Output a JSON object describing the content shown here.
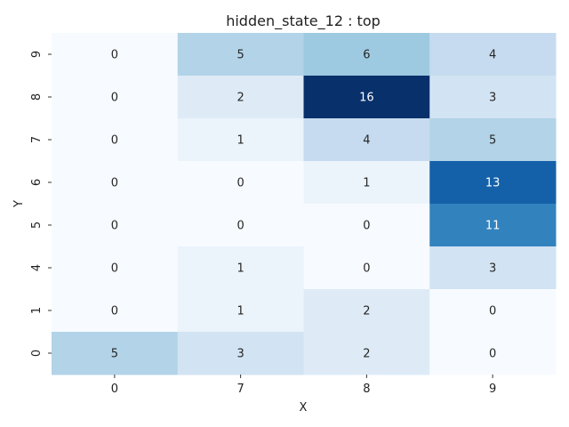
{
  "chart_data": {
    "type": "heatmap",
    "title": "hidden_state_12 : top",
    "xlabel": "X",
    "ylabel": "Y",
    "x_categories": [
      "0",
      "7",
      "8",
      "9"
    ],
    "y_categories": [
      "9",
      "8",
      "7",
      "6",
      "5",
      "4",
      "1",
      "0"
    ],
    "values": [
      [
        0,
        5,
        6,
        4
      ],
      [
        0,
        2,
        16,
        3
      ],
      [
        0,
        1,
        4,
        5
      ],
      [
        0,
        0,
        1,
        13
      ],
      [
        0,
        0,
        0,
        11
      ],
      [
        0,
        1,
        0,
        3
      ],
      [
        0,
        1,
        2,
        0
      ],
      [
        5,
        3,
        2,
        0
      ]
    ],
    "vmin": 0,
    "vmax": 16,
    "colormap": "Blues",
    "colorbar": false,
    "annotations": true
  }
}
